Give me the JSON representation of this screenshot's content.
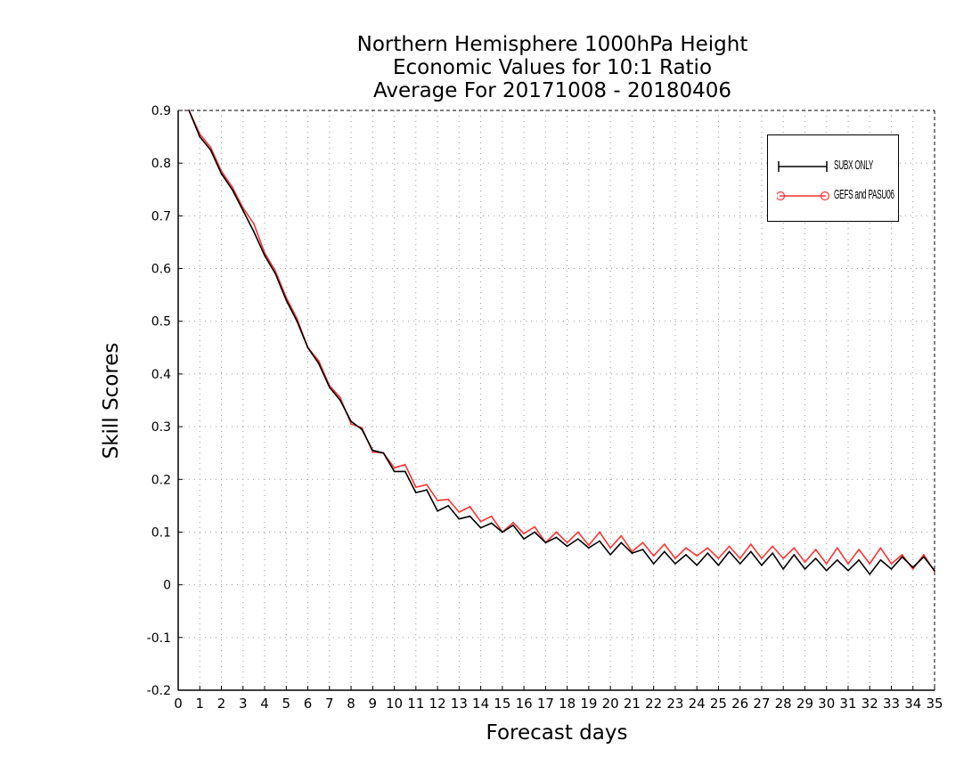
{
  "chart_data": {
    "type": "line",
    "title_lines": [
      "Northern Hemisphere 1000hPa Height",
      "Economic Values for 10:1 Ratio",
      "Average For 20171008 - 20180406"
    ],
    "xlabel": "Forecast days",
    "ylabel": "Skill Scores",
    "xlim": [
      0,
      35
    ],
    "ylim": [
      -0.2,
      0.9
    ],
    "xticks": [
      0,
      1,
      2,
      3,
      4,
      5,
      6,
      7,
      8,
      9,
      10,
      11,
      12,
      13,
      14,
      15,
      16,
      17,
      18,
      19,
      20,
      21,
      22,
      23,
      24,
      25,
      26,
      27,
      28,
      29,
      30,
      31,
      32,
      33,
      34,
      35
    ],
    "yticks": [
      -0.2,
      -0.1,
      0,
      0.1,
      0.2,
      0.3,
      0.4,
      0.5,
      0.6,
      0.7,
      0.8,
      0.9
    ],
    "grid": true,
    "legend_position": "top-right",
    "x": [
      0.5,
      1,
      1.5,
      2,
      2.5,
      3,
      3.5,
      4,
      4.5,
      5,
      5.5,
      6,
      6.5,
      7,
      7.5,
      8,
      8.5,
      9,
      9.5,
      10,
      10.5,
      11,
      11.5,
      12,
      12.5,
      13,
      13.5,
      14,
      14.5,
      15,
      15.5,
      16,
      16.5,
      17,
      17.5,
      18,
      18.5,
      19,
      19.5,
      20,
      20.5,
      21,
      21.5,
      22,
      22.5,
      23,
      23.5,
      24,
      24.5,
      25,
      25.5,
      26,
      26.5,
      27,
      27.5,
      28,
      28.5,
      29,
      29.5,
      30,
      30.5,
      31,
      31.5,
      32,
      32.5,
      33,
      33.5,
      34,
      34.5,
      35
    ],
    "series": [
      {
        "name": "SUBX ONLY",
        "color": "#000000",
        "marker": "plus",
        "values": [
          0.9,
          0.85,
          0.825,
          0.78,
          0.75,
          0.71,
          0.67,
          0.625,
          0.59,
          0.54,
          0.5,
          0.45,
          0.42,
          0.375,
          0.35,
          0.31,
          0.295,
          0.255,
          0.25,
          0.215,
          0.215,
          0.175,
          0.18,
          0.14,
          0.15,
          0.125,
          0.13,
          0.108,
          0.117,
          0.1,
          0.113,
          0.087,
          0.1,
          0.08,
          0.09,
          0.073,
          0.087,
          0.07,
          0.083,
          0.057,
          0.08,
          0.06,
          0.067,
          0.04,
          0.063,
          0.04,
          0.057,
          0.037,
          0.06,
          0.037,
          0.063,
          0.04,
          0.063,
          0.037,
          0.06,
          0.03,
          0.057,
          0.03,
          0.05,
          0.027,
          0.047,
          0.027,
          0.047,
          0.02,
          0.047,
          0.03,
          0.053,
          0.033,
          0.053,
          0.027
        ]
      },
      {
        "name": "GEFS and PASU06",
        "color": "#ff3333",
        "marker": "circle",
        "values": [
          0.9,
          0.855,
          0.83,
          0.785,
          0.755,
          0.715,
          0.685,
          0.63,
          0.595,
          0.545,
          0.505,
          0.45,
          0.425,
          0.378,
          0.355,
          0.305,
          0.298,
          0.252,
          0.25,
          0.222,
          0.228,
          0.185,
          0.19,
          0.16,
          0.162,
          0.138,
          0.148,
          0.12,
          0.13,
          0.1,
          0.118,
          0.097,
          0.11,
          0.08,
          0.1,
          0.08,
          0.1,
          0.075,
          0.1,
          0.07,
          0.093,
          0.063,
          0.08,
          0.055,
          0.077,
          0.05,
          0.07,
          0.055,
          0.07,
          0.05,
          0.073,
          0.05,
          0.077,
          0.05,
          0.073,
          0.05,
          0.07,
          0.043,
          0.067,
          0.04,
          0.07,
          0.04,
          0.067,
          0.04,
          0.07,
          0.04,
          0.057,
          0.03,
          0.057,
          0.025
        ]
      }
    ]
  }
}
